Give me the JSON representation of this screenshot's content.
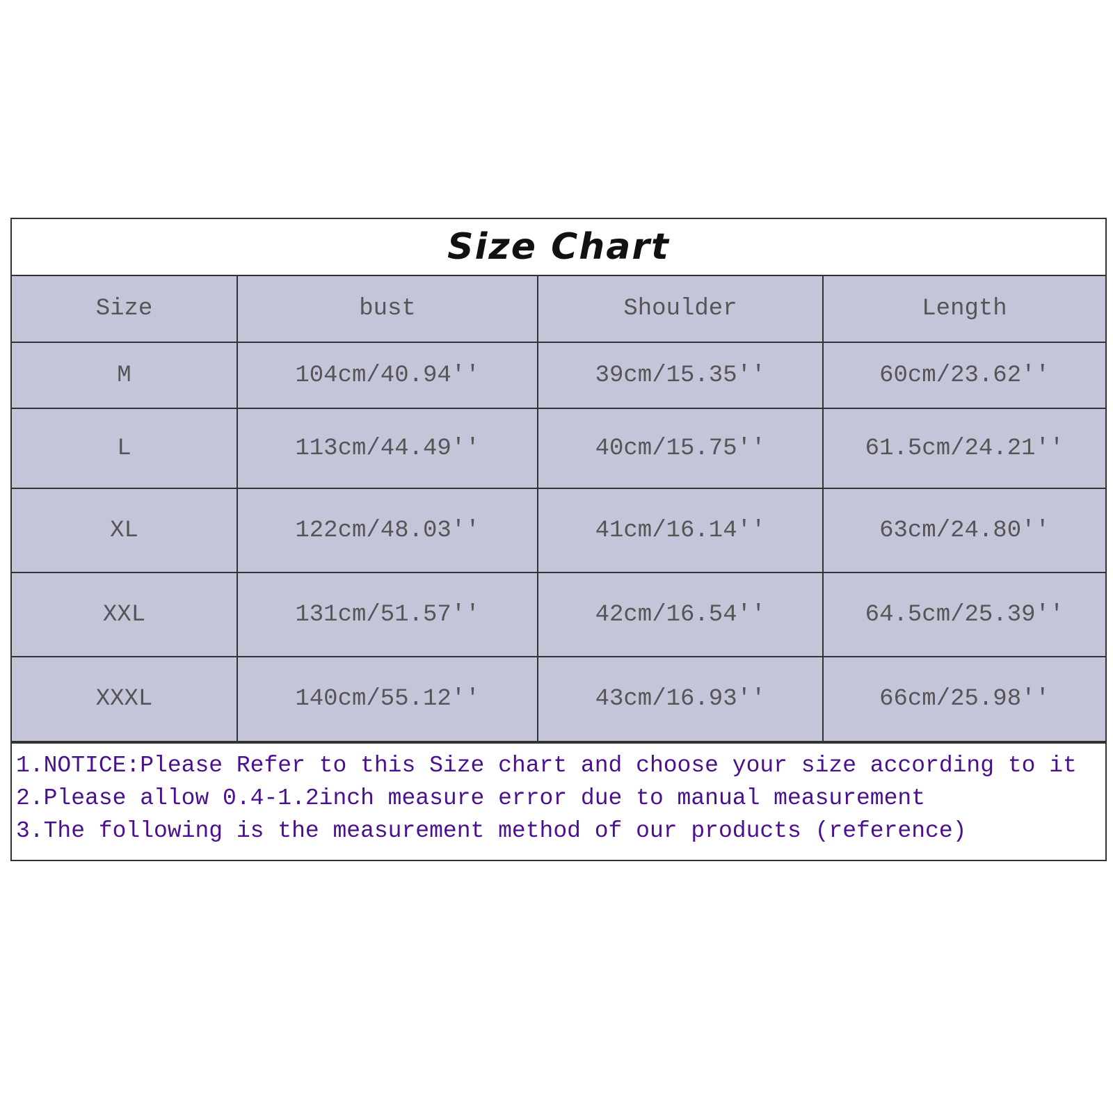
{
  "title": "Size Chart",
  "table": {
    "headers": [
      "Size",
      "bust",
      "Shoulder",
      "Length"
    ],
    "rows": [
      [
        "M",
        "104cm/40.94''",
        "39cm/15.35''",
        "60cm/23.62''"
      ],
      [
        "L",
        "113cm/44.49''",
        "40cm/15.75''",
        "61.5cm/24.21''"
      ],
      [
        "XL",
        "122cm/48.03''",
        "41cm/16.14''",
        "63cm/24.80''"
      ],
      [
        "XXL",
        "131cm/51.57''",
        "42cm/16.54''",
        "64.5cm/25.39''"
      ],
      [
        "XXXL",
        "140cm/55.12''",
        "43cm/16.93''",
        "66cm/25.98''"
      ]
    ]
  },
  "notes": [
    "1.NOTICE:Please Refer to this Size chart and choose your size according to it",
    "2.Please allow 0.4-1.2inch measure error due to manual measurement",
    "3.The following is the measurement method of our products (reference)"
  ],
  "colors": {
    "cell_bg": "#c5c5da",
    "note_text": "#4a1090",
    "cell_text": "#555555"
  }
}
